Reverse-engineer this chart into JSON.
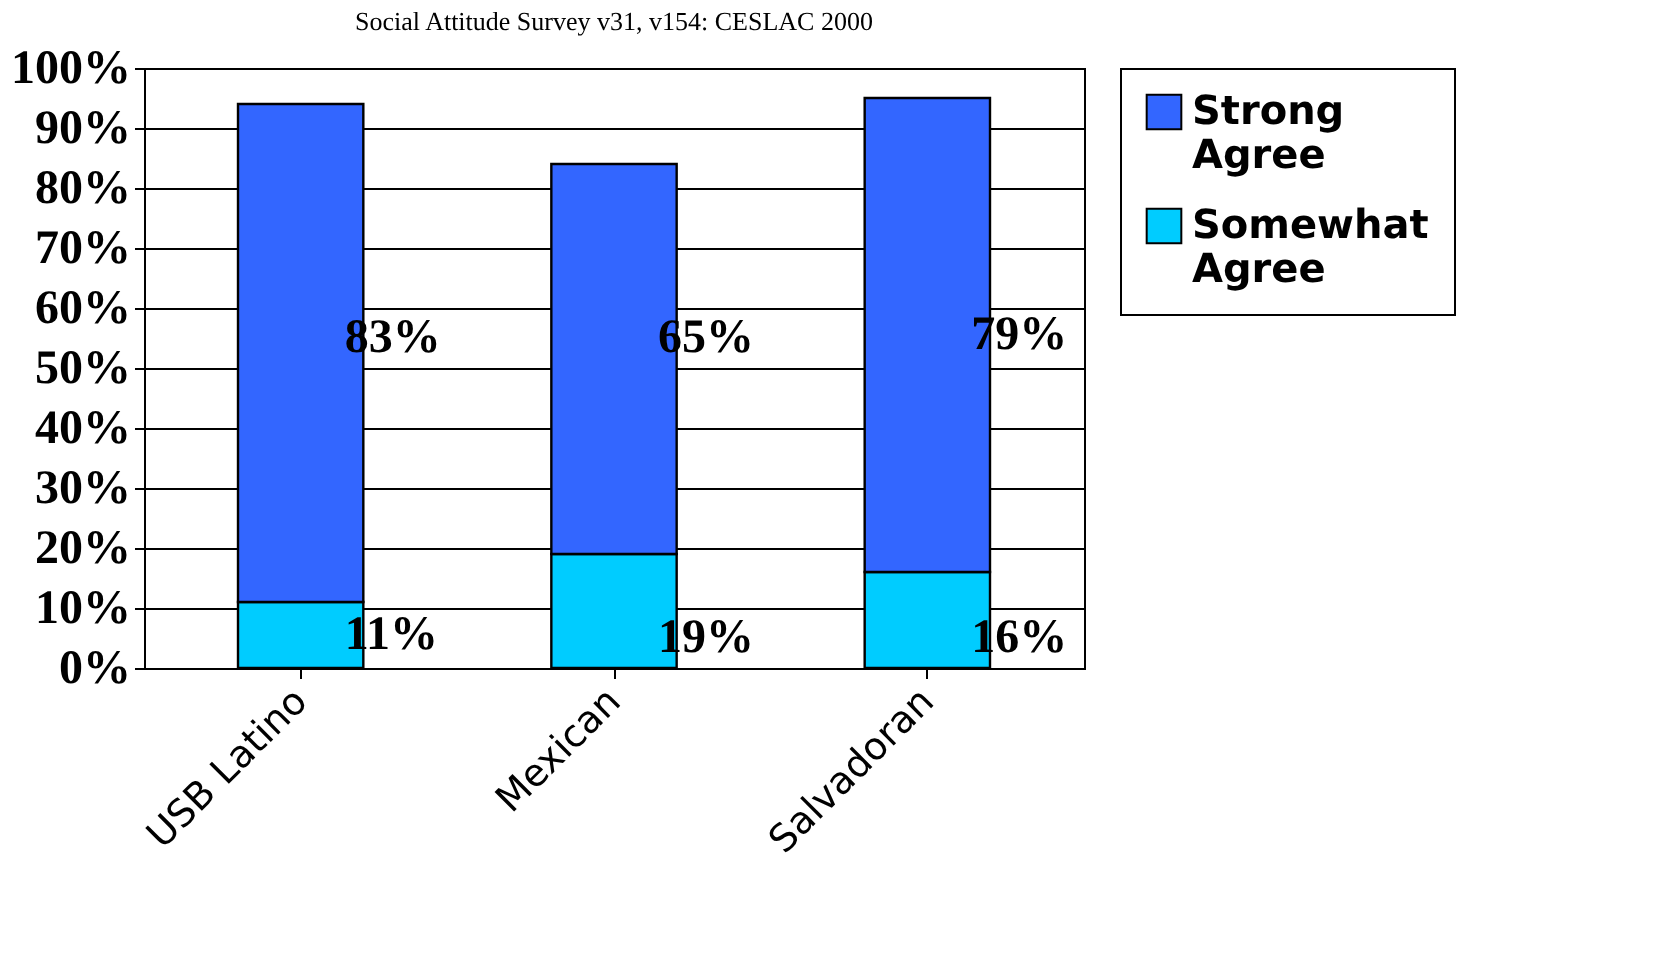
{
  "chart_data": {
    "type": "bar",
    "title": "Social Attitude Survey v31, v154: CESLAC 2000",
    "categories": [
      "USB Latino",
      "Mexican",
      "Salvadoran"
    ],
    "stacked": true,
    "series": [
      {
        "name": "Somewhat Agree",
        "color": "#00ccff",
        "values": [
          11,
          19,
          16
        ],
        "value_labels": [
          "11%",
          "19%",
          "16%"
        ]
      },
      {
        "name": "Strong Agree",
        "color": "#3366ff",
        "values": [
          83,
          65,
          79
        ],
        "value_labels": [
          "83%",
          "65%",
          "79%"
        ]
      }
    ],
    "ylim": [
      0,
      100
    ],
    "yticks": [
      {
        "value": 0,
        "label": "0%"
      },
      {
        "value": 10,
        "label": "10%"
      },
      {
        "value": 20,
        "label": "20%"
      },
      {
        "value": 30,
        "label": "30%"
      },
      {
        "value": 40,
        "label": "40%"
      },
      {
        "value": 50,
        "label": "50%"
      },
      {
        "value": 60,
        "label": "60%"
      },
      {
        "value": 70,
        "label": "70%"
      },
      {
        "value": 80,
        "label": "80%"
      },
      {
        "value": 90,
        "label": "90%"
      },
      {
        "value": 100,
        "label": "100%"
      }
    ],
    "grid": "y",
    "legend": "right"
  }
}
